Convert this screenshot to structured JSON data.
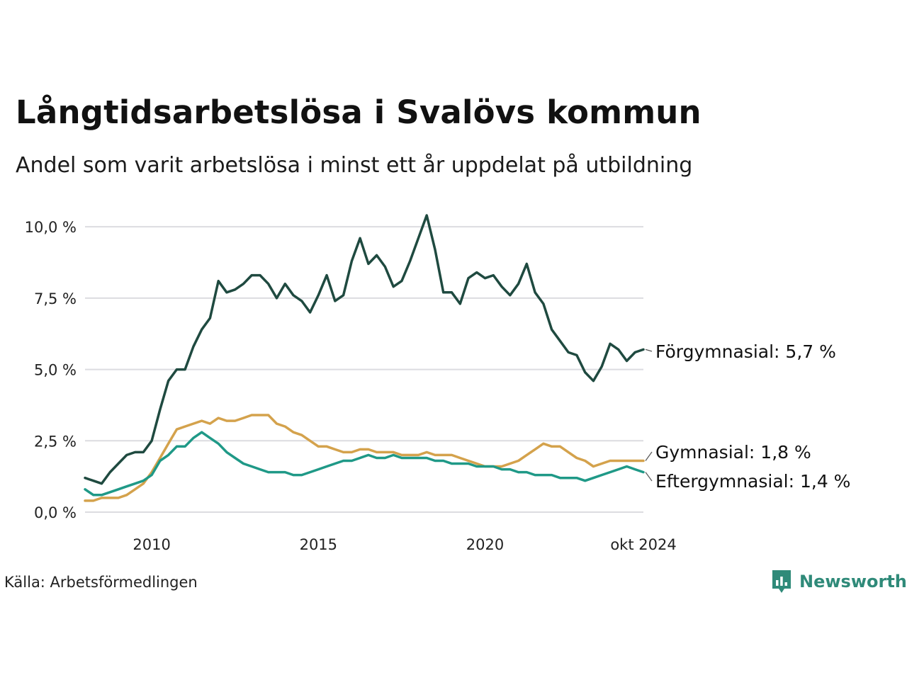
{
  "title": "Långtidsarbetslösa i Svalövs kommun",
  "subtitle": "Andel som varit arbetslösa i minst ett år uppdelat på utbildning",
  "source": "Källa: Arbetsförmedlingen",
  "brand": {
    "name": "Newsworthy",
    "icon": "bar-chart-icon",
    "color": "#2f8a79"
  },
  "chart_data": {
    "type": "line",
    "title": "Långtidsarbetslösa i Svalövs kommun",
    "subtitle": "Andel som varit arbetslösa i minst ett år uppdelat på utbildning",
    "x_ticks": [
      {
        "date": "2010-01",
        "label": "2010"
      },
      {
        "date": "2015-01",
        "label": "2015"
      },
      {
        "date": "2020-01",
        "label": "2020"
      },
      {
        "date": "2024-10",
        "label": "okt 2024"
      }
    ],
    "y_ticks": [
      {
        "value": 0,
        "label": "0,0 %"
      },
      {
        "value": 2.5,
        "label": "2,5 %"
      },
      {
        "value": 5,
        "label": "5,0 %"
      },
      {
        "value": 7.5,
        "label": "7,5 %"
      },
      {
        "value": 10,
        "label": "10,0 %"
      }
    ],
    "xlim": [
      "2008-01",
      "2024-10"
    ],
    "ylim": [
      0,
      10.5
    ],
    "grid": "horizontal",
    "legend": "direct labels at line ends",
    "series": [
      {
        "name": "Förgymnasial",
        "end_label": "Förgymnasial: 5,7 %",
        "color": "#1f4a40",
        "points": [
          [
            "2008-01",
            1.2
          ],
          [
            "2008-04",
            1.1
          ],
          [
            "2008-07",
            1.0
          ],
          [
            "2008-10",
            1.4
          ],
          [
            "2009-01",
            1.7
          ],
          [
            "2009-04",
            2.0
          ],
          [
            "2009-07",
            2.1
          ],
          [
            "2009-10",
            2.1
          ],
          [
            "2010-01",
            2.5
          ],
          [
            "2010-04",
            3.6
          ],
          [
            "2010-07",
            4.6
          ],
          [
            "2010-10",
            5.0
          ],
          [
            "2011-01",
            5.0
          ],
          [
            "2011-04",
            5.8
          ],
          [
            "2011-07",
            6.4
          ],
          [
            "2011-10",
            6.8
          ],
          [
            "2012-01",
            8.1
          ],
          [
            "2012-04",
            7.7
          ],
          [
            "2012-07",
            7.8
          ],
          [
            "2012-10",
            8.0
          ],
          [
            "2013-01",
            8.3
          ],
          [
            "2013-04",
            8.3
          ],
          [
            "2013-07",
            8.0
          ],
          [
            "2013-10",
            7.5
          ],
          [
            "2014-01",
            8.0
          ],
          [
            "2014-04",
            7.6
          ],
          [
            "2014-07",
            7.4
          ],
          [
            "2014-10",
            7.0
          ],
          [
            "2015-01",
            7.6
          ],
          [
            "2015-04",
            8.3
          ],
          [
            "2015-07",
            7.4
          ],
          [
            "2015-10",
            7.6
          ],
          [
            "2016-01",
            8.8
          ],
          [
            "2016-04",
            9.6
          ],
          [
            "2016-07",
            8.7
          ],
          [
            "2016-10",
            9.0
          ],
          [
            "2017-01",
            8.6
          ],
          [
            "2017-04",
            7.9
          ],
          [
            "2017-07",
            8.1
          ],
          [
            "2017-10",
            8.8
          ],
          [
            "2018-01",
            9.6
          ],
          [
            "2018-04",
            10.4
          ],
          [
            "2018-07",
            9.2
          ],
          [
            "2018-10",
            7.7
          ],
          [
            "2019-01",
            7.7
          ],
          [
            "2019-04",
            7.3
          ],
          [
            "2019-07",
            8.2
          ],
          [
            "2019-10",
            8.4
          ],
          [
            "2020-01",
            8.2
          ],
          [
            "2020-04",
            8.3
          ],
          [
            "2020-07",
            7.9
          ],
          [
            "2020-10",
            7.6
          ],
          [
            "2021-01",
            8.0
          ],
          [
            "2021-04",
            8.7
          ],
          [
            "2021-07",
            7.7
          ],
          [
            "2021-10",
            7.3
          ],
          [
            "2022-01",
            6.4
          ],
          [
            "2022-04",
            6.0
          ],
          [
            "2022-07",
            5.6
          ],
          [
            "2022-10",
            5.5
          ],
          [
            "2023-01",
            4.9
          ],
          [
            "2023-04",
            4.6
          ],
          [
            "2023-07",
            5.1
          ],
          [
            "2023-10",
            5.9
          ],
          [
            "2024-01",
            5.7
          ],
          [
            "2024-04",
            5.3
          ],
          [
            "2024-07",
            5.6
          ],
          [
            "2024-10",
            5.7
          ]
        ]
      },
      {
        "name": "Gymnasial",
        "end_label": "Gymnasial: 1,8 %",
        "color": "#d4a24c",
        "points": [
          [
            "2008-01",
            0.4
          ],
          [
            "2008-04",
            0.4
          ],
          [
            "2008-07",
            0.5
          ],
          [
            "2008-10",
            0.5
          ],
          [
            "2009-01",
            0.5
          ],
          [
            "2009-04",
            0.6
          ],
          [
            "2009-07",
            0.8
          ],
          [
            "2009-10",
            1.0
          ],
          [
            "2010-01",
            1.4
          ],
          [
            "2010-04",
            1.9
          ],
          [
            "2010-07",
            2.4
          ],
          [
            "2010-10",
            2.9
          ],
          [
            "2011-01",
            3.0
          ],
          [
            "2011-04",
            3.1
          ],
          [
            "2011-07",
            3.2
          ],
          [
            "2011-10",
            3.1
          ],
          [
            "2012-01",
            3.3
          ],
          [
            "2012-04",
            3.2
          ],
          [
            "2012-07",
            3.2
          ],
          [
            "2012-10",
            3.3
          ],
          [
            "2013-01",
            3.4
          ],
          [
            "2013-04",
            3.4
          ],
          [
            "2013-07",
            3.4
          ],
          [
            "2013-10",
            3.1
          ],
          [
            "2014-01",
            3.0
          ],
          [
            "2014-04",
            2.8
          ],
          [
            "2014-07",
            2.7
          ],
          [
            "2014-10",
            2.5
          ],
          [
            "2015-01",
            2.3
          ],
          [
            "2015-04",
            2.3
          ],
          [
            "2015-07",
            2.2
          ],
          [
            "2015-10",
            2.1
          ],
          [
            "2016-01",
            2.1
          ],
          [
            "2016-04",
            2.2
          ],
          [
            "2016-07",
            2.2
          ],
          [
            "2016-10",
            2.1
          ],
          [
            "2017-01",
            2.1
          ],
          [
            "2017-04",
            2.1
          ],
          [
            "2017-07",
            2.0
          ],
          [
            "2017-10",
            2.0
          ],
          [
            "2018-01",
            2.0
          ],
          [
            "2018-04",
            2.1
          ],
          [
            "2018-07",
            2.0
          ],
          [
            "2018-10",
            2.0
          ],
          [
            "2019-01",
            2.0
          ],
          [
            "2019-04",
            1.9
          ],
          [
            "2019-07",
            1.8
          ],
          [
            "2019-10",
            1.7
          ],
          [
            "2020-01",
            1.6
          ],
          [
            "2020-04",
            1.6
          ],
          [
            "2020-07",
            1.6
          ],
          [
            "2020-10",
            1.7
          ],
          [
            "2021-01",
            1.8
          ],
          [
            "2021-04",
            2.0
          ],
          [
            "2021-07",
            2.2
          ],
          [
            "2021-10",
            2.4
          ],
          [
            "2022-01",
            2.3
          ],
          [
            "2022-04",
            2.3
          ],
          [
            "2022-07",
            2.1
          ],
          [
            "2022-10",
            1.9
          ],
          [
            "2023-01",
            1.8
          ],
          [
            "2023-04",
            1.6
          ],
          [
            "2023-07",
            1.7
          ],
          [
            "2023-10",
            1.8
          ],
          [
            "2024-01",
            1.8
          ],
          [
            "2024-04",
            1.8
          ],
          [
            "2024-07",
            1.8
          ],
          [
            "2024-10",
            1.8
          ]
        ]
      },
      {
        "name": "Eftergymnasial",
        "end_label": "Eftergymnasial: 1,4 %",
        "color": "#1f9987",
        "points": [
          [
            "2008-01",
            0.8
          ],
          [
            "2008-04",
            0.6
          ],
          [
            "2008-07",
            0.6
          ],
          [
            "2008-10",
            0.7
          ],
          [
            "2009-01",
            0.8
          ],
          [
            "2009-04",
            0.9
          ],
          [
            "2009-07",
            1.0
          ],
          [
            "2009-10",
            1.1
          ],
          [
            "2010-01",
            1.3
          ],
          [
            "2010-04",
            1.8
          ],
          [
            "2010-07",
            2.0
          ],
          [
            "2010-10",
            2.3
          ],
          [
            "2011-01",
            2.3
          ],
          [
            "2011-04",
            2.6
          ],
          [
            "2011-07",
            2.8
          ],
          [
            "2011-10",
            2.6
          ],
          [
            "2012-01",
            2.4
          ],
          [
            "2012-04",
            2.1
          ],
          [
            "2012-07",
            1.9
          ],
          [
            "2012-10",
            1.7
          ],
          [
            "2013-01",
            1.6
          ],
          [
            "2013-04",
            1.5
          ],
          [
            "2013-07",
            1.4
          ],
          [
            "2013-10",
            1.4
          ],
          [
            "2014-01",
            1.4
          ],
          [
            "2014-04",
            1.3
          ],
          [
            "2014-07",
            1.3
          ],
          [
            "2014-10",
            1.4
          ],
          [
            "2015-01",
            1.5
          ],
          [
            "2015-04",
            1.6
          ],
          [
            "2015-07",
            1.7
          ],
          [
            "2015-10",
            1.8
          ],
          [
            "2016-01",
            1.8
          ],
          [
            "2016-04",
            1.9
          ],
          [
            "2016-07",
            2.0
          ],
          [
            "2016-10",
            1.9
          ],
          [
            "2017-01",
            1.9
          ],
          [
            "2017-04",
            2.0
          ],
          [
            "2017-07",
            1.9
          ],
          [
            "2017-10",
            1.9
          ],
          [
            "2018-01",
            1.9
          ],
          [
            "2018-04",
            1.9
          ],
          [
            "2018-07",
            1.8
          ],
          [
            "2018-10",
            1.8
          ],
          [
            "2019-01",
            1.7
          ],
          [
            "2019-04",
            1.7
          ],
          [
            "2019-07",
            1.7
          ],
          [
            "2019-10",
            1.6
          ],
          [
            "2020-01",
            1.6
          ],
          [
            "2020-04",
            1.6
          ],
          [
            "2020-07",
            1.5
          ],
          [
            "2020-10",
            1.5
          ],
          [
            "2021-01",
            1.4
          ],
          [
            "2021-04",
            1.4
          ],
          [
            "2021-07",
            1.3
          ],
          [
            "2021-10",
            1.3
          ],
          [
            "2022-01",
            1.3
          ],
          [
            "2022-04",
            1.2
          ],
          [
            "2022-07",
            1.2
          ],
          [
            "2022-10",
            1.2
          ],
          [
            "2023-01",
            1.1
          ],
          [
            "2023-04",
            1.2
          ],
          [
            "2023-07",
            1.3
          ],
          [
            "2023-10",
            1.4
          ],
          [
            "2024-01",
            1.5
          ],
          [
            "2024-04",
            1.6
          ],
          [
            "2024-07",
            1.5
          ],
          [
            "2024-10",
            1.4
          ]
        ]
      }
    ]
  }
}
